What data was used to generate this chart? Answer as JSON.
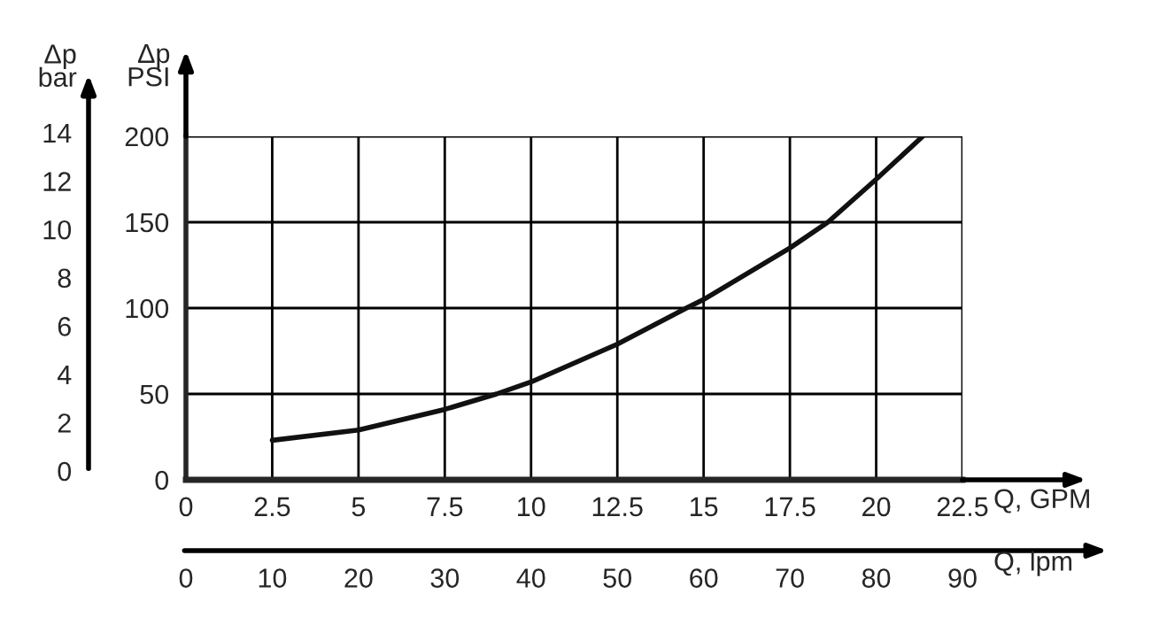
{
  "chart_data": {
    "type": "line",
    "xlabel": "Q, GPM",
    "xlim": [
      0,
      22.5
    ],
    "xticks": [
      0,
      2.5,
      5,
      7.5,
      10,
      12.5,
      15,
      17.5,
      20,
      22.5
    ],
    "x2label": "Q, lpm",
    "x2lim": [
      0,
      90
    ],
    "x2ticks": [
      0,
      10,
      20,
      30,
      40,
      50,
      60,
      70,
      80,
      90
    ],
    "ylabel": "Δp\nPSI",
    "ylim": [
      0,
      200
    ],
    "yticks": [
      0,
      50,
      100,
      150,
      200
    ],
    "y2label": "Δp\nbar",
    "y2lim": [
      0,
      14
    ],
    "y2ticks": [
      0,
      2,
      4,
      6,
      8,
      10,
      12,
      14
    ],
    "grid": true,
    "legend": false,
    "series": [
      {
        "color": "#111111",
        "x": [
          2.5,
          5,
          7.5,
          9.0,
          10,
          12.5,
          14.5,
          15,
          17.5,
          18.6,
          20,
          21.35
        ],
        "values": [
          23,
          29,
          41,
          50,
          57,
          79,
          100,
          105,
          135,
          150,
          175,
          200
        ]
      }
    ]
  }
}
